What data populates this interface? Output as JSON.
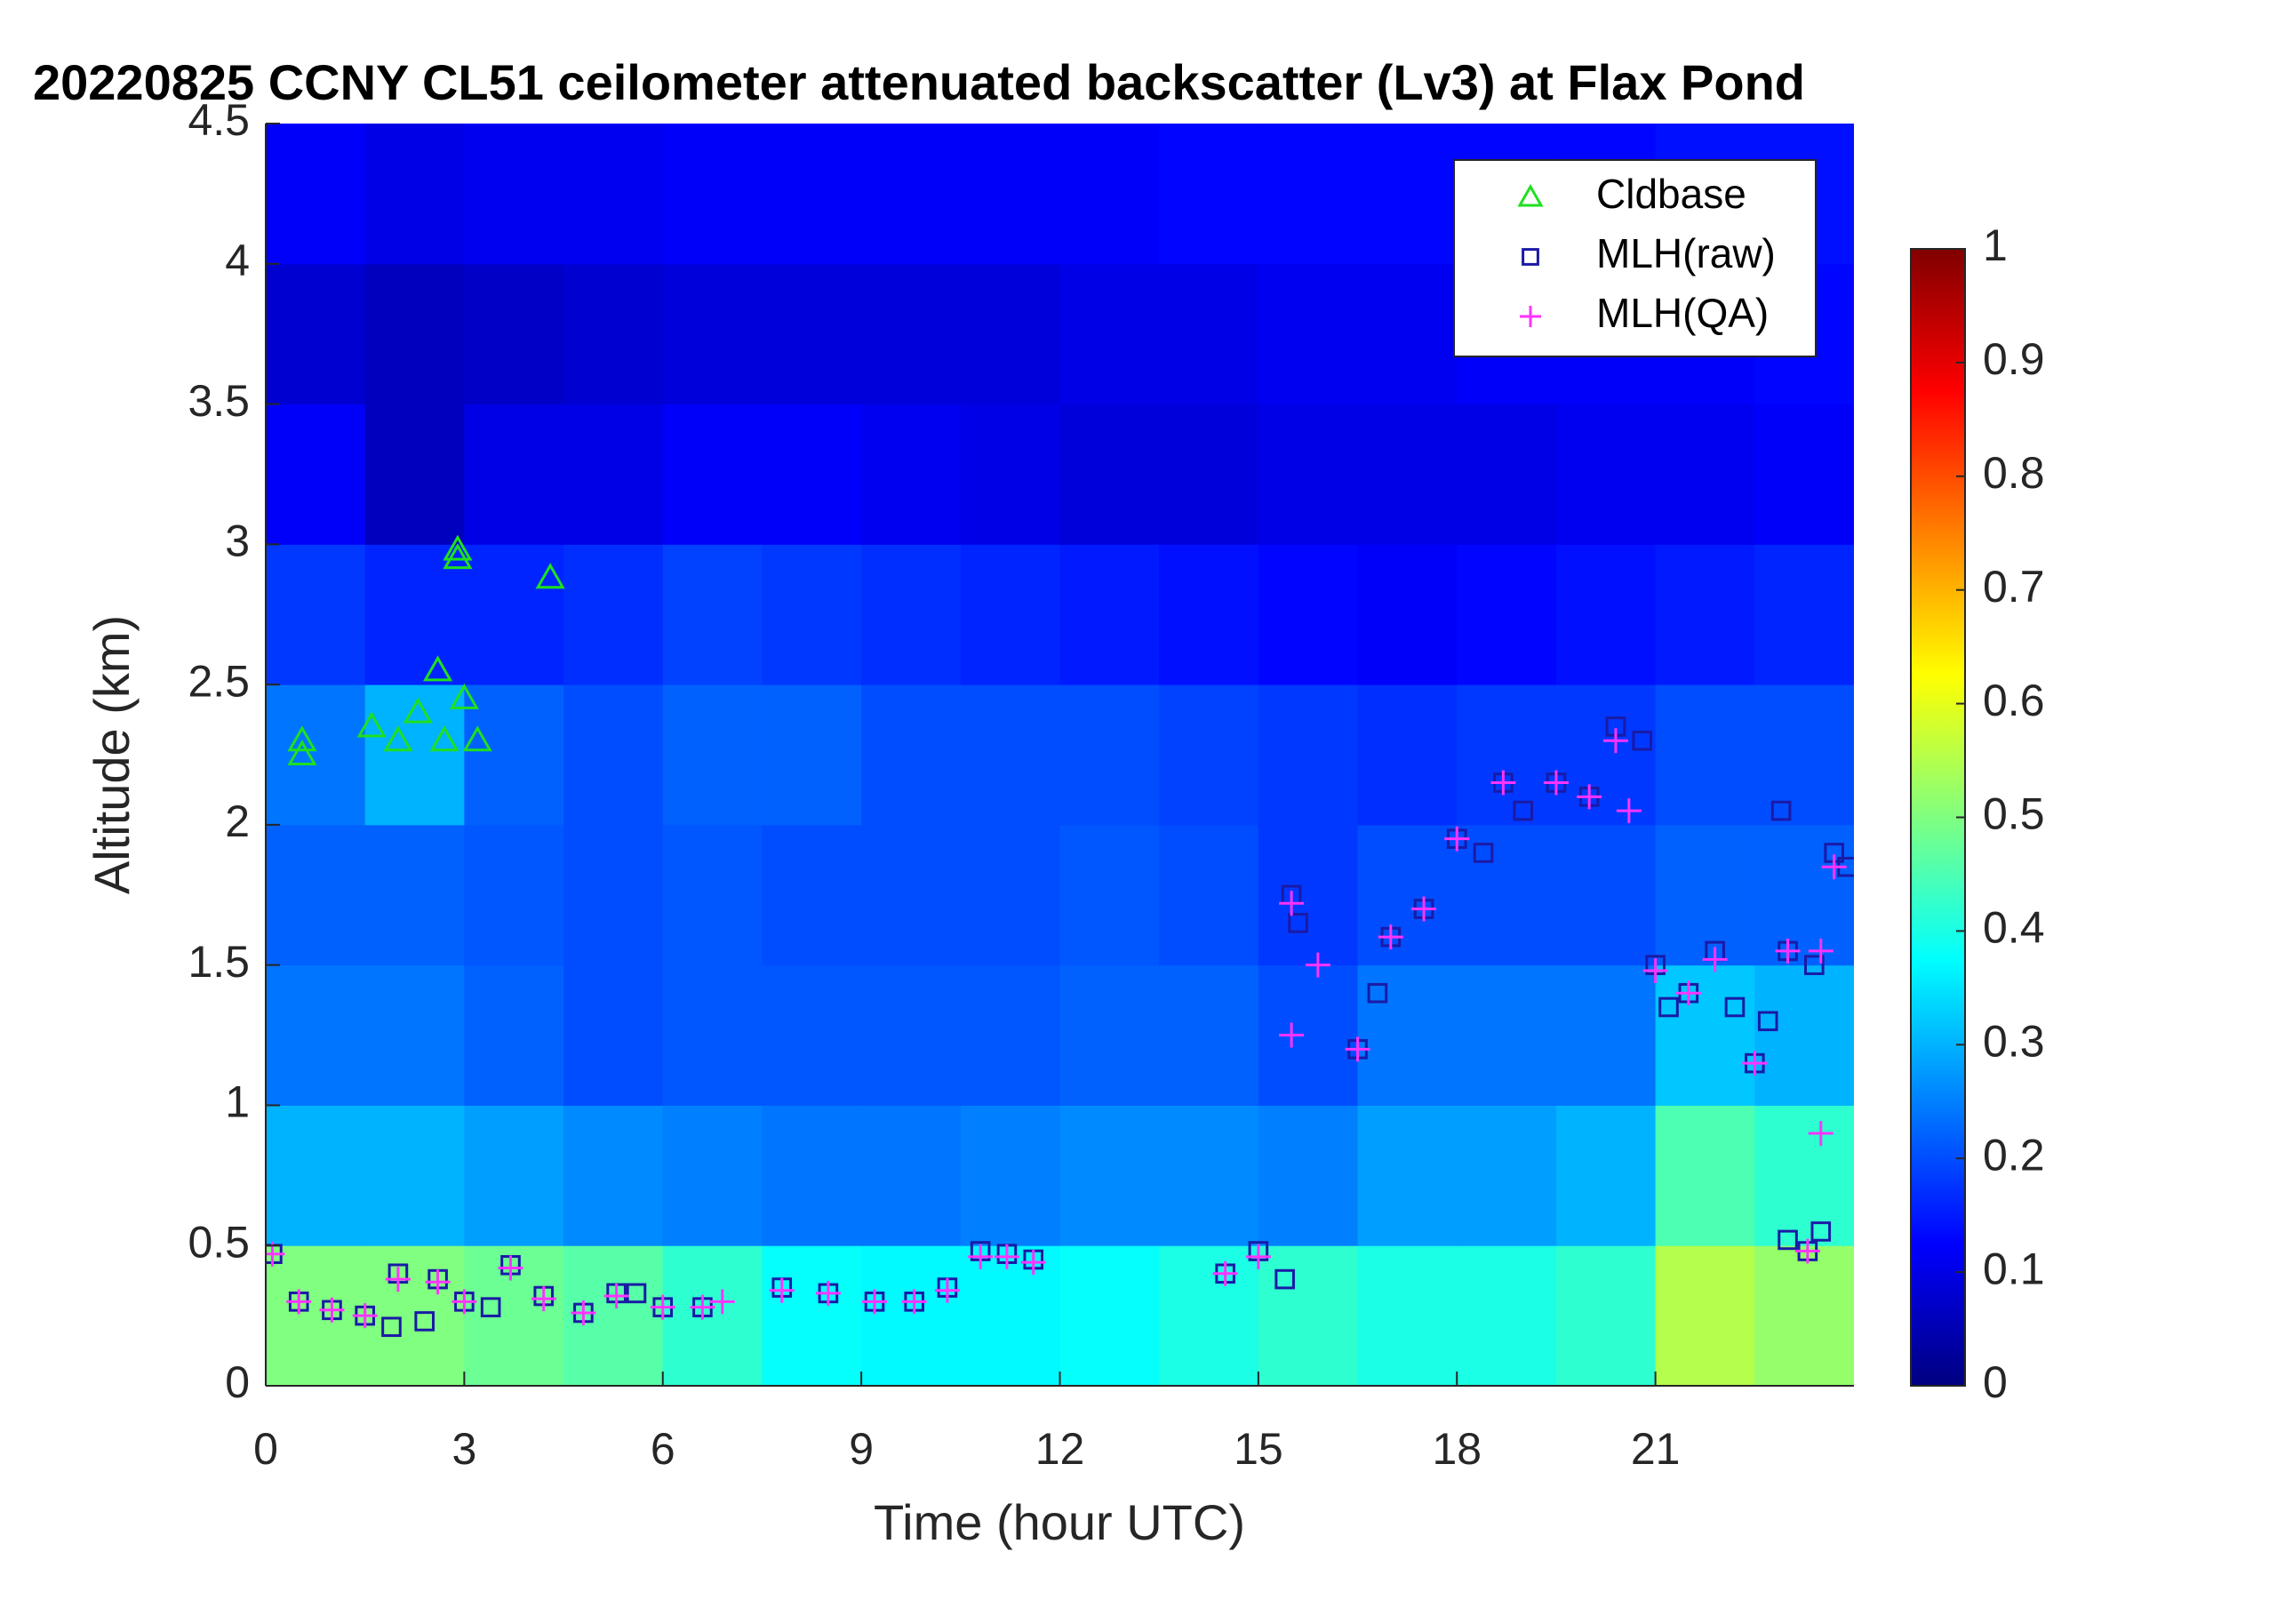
{
  "chart_data": {
    "type": "heatmap",
    "title": "20220825 CCNY CL51 ceilometer attenuated backscatter (Lv3) at Flax Pond",
    "xlabel": "Time (hour UTC)",
    "ylabel": "Altitude (km)",
    "xlim": [
      0,
      24
    ],
    "xticks": [
      0,
      3,
      6,
      9,
      12,
      15,
      18,
      21
    ],
    "ylim": [
      0,
      4.5
    ],
    "yticks": [
      0,
      0.5,
      1,
      1.5,
      2,
      2.5,
      3,
      3.5,
      4,
      4.5
    ],
    "colormap": "jet",
    "clim": [
      0,
      1
    ],
    "cticks": [
      0,
      0.1,
      0.2,
      0.3,
      0.4,
      0.5,
      0.6,
      0.7,
      0.8,
      0.9,
      1
    ],
    "xbins": [
      0,
      1.5,
      3,
      4.5,
      6,
      7.5,
      9,
      10.5,
      12,
      13.5,
      15,
      16.5,
      18,
      19.5,
      21,
      22.5,
      24
    ],
    "ybins": [
      0,
      0.5,
      1,
      1.5,
      2,
      2.5,
      3,
      3.5,
      4,
      4.5
    ],
    "z": [
      [
        0.5,
        0.5,
        0.48,
        0.46,
        0.42,
        0.38,
        0.37,
        0.37,
        0.38,
        0.4,
        0.42,
        0.4,
        0.4,
        0.42,
        0.55,
        0.52
      ],
      [
        0.3,
        0.3,
        0.28,
        0.26,
        0.25,
        0.24,
        0.24,
        0.25,
        0.26,
        0.26,
        0.25,
        0.28,
        0.28,
        0.3,
        0.45,
        0.42
      ],
      [
        0.24,
        0.24,
        0.22,
        0.2,
        0.21,
        0.21,
        0.21,
        0.21,
        0.22,
        0.22,
        0.2,
        0.24,
        0.24,
        0.24,
        0.32,
        0.3
      ],
      [
        0.22,
        0.22,
        0.21,
        0.2,
        0.21,
        0.2,
        0.2,
        0.2,
        0.21,
        0.2,
        0.18,
        0.2,
        0.2,
        0.2,
        0.22,
        0.22
      ],
      [
        0.24,
        0.3,
        0.22,
        0.2,
        0.22,
        0.22,
        0.2,
        0.2,
        0.2,
        0.19,
        0.18,
        0.17,
        0.18,
        0.18,
        0.2,
        0.2
      ],
      [
        0.18,
        0.16,
        0.16,
        0.17,
        0.19,
        0.18,
        0.17,
        0.16,
        0.15,
        0.14,
        0.13,
        0.12,
        0.13,
        0.14,
        0.15,
        0.16
      ],
      [
        0.12,
        0.06,
        0.1,
        0.1,
        0.12,
        0.12,
        0.11,
        0.1,
        0.09,
        0.09,
        0.1,
        0.1,
        0.1,
        0.11,
        0.11,
        0.12
      ],
      [
        0.08,
        0.06,
        0.07,
        0.08,
        0.09,
        0.09,
        0.09,
        0.09,
        0.1,
        0.1,
        0.11,
        0.11,
        0.12,
        0.12,
        0.12,
        0.13
      ],
      [
        0.12,
        0.1,
        0.11,
        0.11,
        0.12,
        0.12,
        0.12,
        0.12,
        0.12,
        0.13,
        0.13,
        0.13,
        0.13,
        0.13,
        0.14,
        0.14
      ]
    ],
    "legend": "upper right",
    "series": [
      {
        "name": "Cldbase",
        "color": "#1fe01f",
        "marker": "triangle",
        "x": [
          0.55,
          0.55,
          1.6,
          2.0,
          2.3,
          2.6,
          2.7,
          2.9,
          2.9,
          3.0,
          3.2,
          4.3
        ],
        "values": [
          2.3,
          2.25,
          2.35,
          2.3,
          2.4,
          2.55,
          2.3,
          2.98,
          2.95,
          2.45,
          2.3,
          2.88
        ]
      },
      {
        "name": "MLH(raw)",
        "color": "#1a1aa6",
        "marker": "square",
        "x": [
          0.1,
          0.5,
          1,
          1.5,
          1.9,
          2,
          2.4,
          2.6,
          3,
          3.4,
          3.7,
          4.2,
          4.8,
          5.3,
          5.6,
          6,
          6.6,
          7.8,
          8.5,
          9.2,
          9.8,
          10.3,
          10.8,
          11.2,
          11.6,
          14.5,
          15,
          15.4,
          15.5,
          15.6,
          16.5,
          16.8,
          17,
          17.5,
          18,
          18.4,
          18.7,
          19,
          19.5,
          20,
          20.4,
          20.8,
          21,
          21.2,
          21.5,
          21.9,
          22.2,
          22.5,
          22.7,
          23,
          22.9,
          23,
          23.3,
          23.5,
          23.4,
          23.7,
          23.9
        ],
        "values": [
          0.47,
          0.3,
          0.27,
          0.25,
          0.21,
          0.4,
          0.23,
          0.38,
          0.3,
          0.28,
          0.43,
          0.32,
          0.26,
          0.33,
          0.33,
          0.28,
          0.28,
          0.35,
          0.33,
          0.3,
          0.3,
          0.35,
          0.48,
          0.47,
          0.45,
          0.4,
          0.48,
          0.38,
          1.75,
          1.65,
          1.2,
          1.4,
          1.6,
          1.7,
          1.95,
          1.9,
          2.15,
          2.05,
          2.15,
          2.1,
          2.35,
          2.3,
          1.5,
          1.35,
          1.4,
          1.55,
          1.35,
          1.15,
          1.3,
          1.55,
          2.05,
          0.52,
          0.48,
          0.55,
          1.5,
          1.9,
          1.85
        ]
      },
      {
        "name": "MLH(QA)",
        "color": "#ff33ff",
        "marker": "plus",
        "x": [
          0.1,
          0.5,
          1,
          1.5,
          2,
          2.6,
          3,
          3.7,
          4.2,
          4.8,
          5.3,
          6,
          6.6,
          6.9,
          7.8,
          8.5,
          9.2,
          9.8,
          10.3,
          10.8,
          11.2,
          11.6,
          14.5,
          15,
          15.5,
          15.5,
          15.9,
          16.5,
          17,
          17.5,
          18,
          18.7,
          19.5,
          20,
          20.4,
          20.6,
          21,
          21.5,
          21.9,
          22.5,
          23,
          23.3,
          23.5,
          23.5,
          23.7
        ],
        "values": [
          0.47,
          0.3,
          0.27,
          0.25,
          0.38,
          0.37,
          0.3,
          0.42,
          0.31,
          0.26,
          0.32,
          0.28,
          0.28,
          0.3,
          0.34,
          0.33,
          0.3,
          0.3,
          0.34,
          0.46,
          0.46,
          0.44,
          0.4,
          0.46,
          1.72,
          1.25,
          1.5,
          1.2,
          1.6,
          1.7,
          1.95,
          2.15,
          2.15,
          2.1,
          2.3,
          2.05,
          1.48,
          1.4,
          1.52,
          1.15,
          1.55,
          0.48,
          0.9,
          1.55,
          1.85
        ]
      }
    ]
  }
}
